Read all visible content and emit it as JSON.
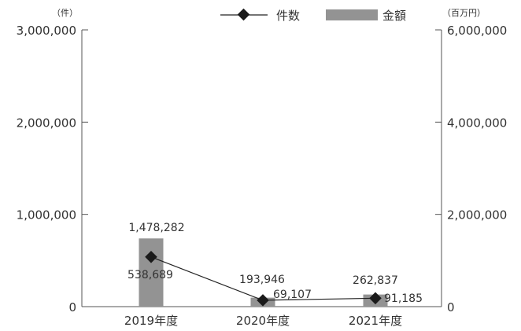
{
  "chart_data": {
    "type": "bar+line",
    "categories": [
      "2019年度",
      "2020年度",
      "2021年度"
    ],
    "series": [
      {
        "name": "件数",
        "kind": "line",
        "axis": "left",
        "values": [
          538689,
          69107,
          91185
        ],
        "labels": [
          "538,689",
          "69,107",
          "91,185"
        ]
      },
      {
        "name": "金額",
        "kind": "bar",
        "axis": "right",
        "values": [
          1478282,
          193946,
          262837
        ],
        "labels": [
          "1,478,282",
          "193,946",
          "262,837"
        ]
      }
    ],
    "y_left": {
      "unit": "（件）",
      "range": [
        0,
        3000000
      ],
      "ticks": [
        0,
        1000000,
        2000000,
        3000000
      ],
      "tick_labels": [
        "0",
        "1,000,000",
        "2,000,000",
        "3,000,000"
      ]
    },
    "y_right": {
      "unit": "（百万円）",
      "range": [
        0,
        6000000
      ],
      "ticks": [
        0,
        2000000,
        4000000,
        6000000
      ],
      "tick_labels": [
        "0",
        "2,000,000",
        "4,000,000",
        "6,000,000"
      ]
    },
    "grid": false,
    "legend_position": "top",
    "colors": {
      "bar": "#939393",
      "line": "#222222",
      "marker": "#1a1a1a",
      "axis": "#555555"
    }
  }
}
